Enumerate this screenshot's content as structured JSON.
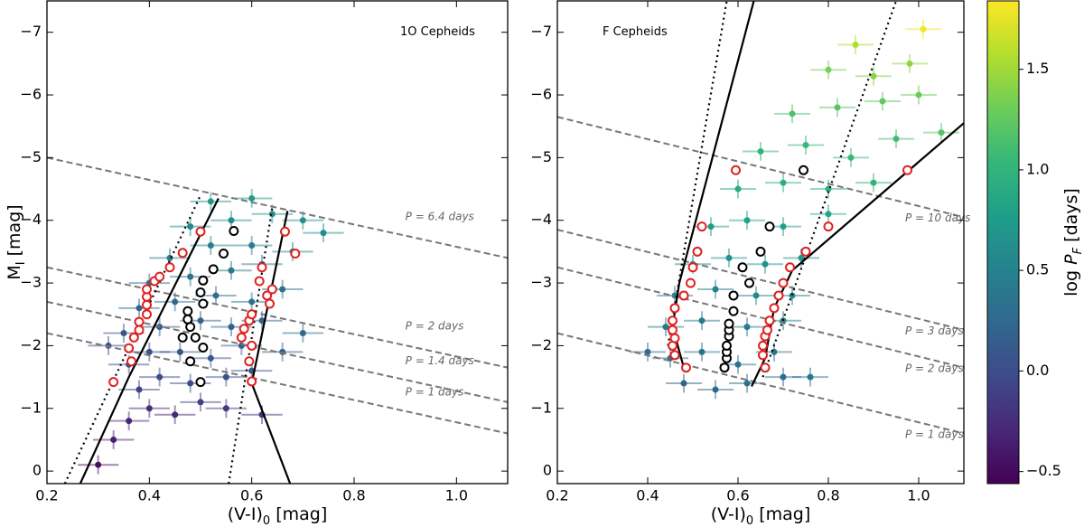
{
  "chart_data": [
    {
      "type": "scatter",
      "annotation": "1O Cepheids",
      "xlabel": [
        "(V-I)",
        "0",
        " [mag]"
      ],
      "ylabel": [
        "M",
        "I",
        " [mag]"
      ],
      "xlim": [
        0.2,
        1.1
      ],
      "ylim": [
        0.2,
        -7.5
      ],
      "xticks": [
        0.2,
        0.4,
        0.6,
        0.8,
        {
          "value": 1,
          "label": "1.0"
        }
      ],
      "yticks": [
        0,
        {
          "value": -1,
          "label": "−1"
        },
        {
          "value": -2,
          "label": "−2"
        },
        {
          "value": -3,
          "label": "−3"
        },
        {
          "value": -4,
          "label": "−4"
        },
        {
          "value": -5,
          "label": "−5"
        },
        {
          "value": -6,
          "label": "−6"
        },
        {
          "value": -7,
          "label": "−7"
        }
      ],
      "x": [
        0.3,
        0.33,
        0.36,
        0.4,
        0.45,
        0.5,
        0.55,
        0.62,
        0.38,
        0.42,
        0.48,
        0.55,
        0.6,
        0.36,
        0.4,
        0.46,
        0.52,
        0.58,
        0.35,
        0.42,
        0.5,
        0.56,
        0.62,
        0.38,
        0.45,
        0.53,
        0.6,
        0.66,
        0.4,
        0.48,
        0.56,
        0.62,
        0.44,
        0.52,
        0.6,
        0.68,
        0.48,
        0.56,
        0.64,
        0.7,
        0.52,
        0.6,
        0.74,
        0.32,
        0.7,
        0.66
      ],
      "y": [
        -0.1,
        -0.5,
        -0.8,
        -1.0,
        -0.9,
        -1.1,
        -1.0,
        -0.9,
        -1.3,
        -1.5,
        -1.4,
        -1.5,
        -1.6,
        -1.7,
        -1.9,
        -1.9,
        -1.8,
        -2.0,
        -2.2,
        -2.3,
        -2.4,
        -2.3,
        -2.4,
        -2.6,
        -2.7,
        -2.8,
        -2.7,
        -2.9,
        -3.0,
        -3.1,
        -3.2,
        -3.3,
        -3.4,
        -3.6,
        -3.6,
        -3.5,
        -3.9,
        -4.0,
        -4.1,
        -4.0,
        -4.3,
        -4.35,
        -3.8,
        -2.0,
        -2.2,
        -1.9
      ],
      "c": [
        -0.45,
        -0.35,
        -0.3,
        -0.25,
        -0.3,
        -0.1,
        -0.15,
        -0.2,
        -0.1,
        0.0,
        0.0,
        0.05,
        0.05,
        0.0,
        0.05,
        0.1,
        0.1,
        0.15,
        0.1,
        0.15,
        0.2,
        0.2,
        0.2,
        0.2,
        0.25,
        0.3,
        0.3,
        0.35,
        0.3,
        0.35,
        0.4,
        0.4,
        0.4,
        0.5,
        0.5,
        0.5,
        0.55,
        0.6,
        0.65,
        0.65,
        0.7,
        0.75,
        0.6,
        0.05,
        0.25,
        0.15
      ],
      "xerr": 0.04,
      "yerr": 0.15,
      "period_lines": [
        {
          "label": "P = 6.4 days",
          "x": [
            0.2,
            1.1
          ],
          "y": [
            -5.0,
            -3.4
          ]
        },
        {
          "label": "P = 2 days",
          "x": [
            0.2,
            1.1
          ],
          "y": [
            -3.25,
            -1.65
          ]
        },
        {
          "label": "P = 1.4 days",
          "x": [
            0.2,
            1.1
          ],
          "y": [
            -2.7,
            -1.1
          ]
        },
        {
          "label": "P = 1 days",
          "x": [
            0.2,
            1.1
          ],
          "y": [
            -2.2,
            -0.6
          ]
        }
      ],
      "edges": [
        {
          "style": "solid",
          "x": [
            0.265,
            0.36,
            0.535
          ],
          "y": [
            0.2,
            -1.5,
            -4.35
          ]
        },
        {
          "style": "dotted",
          "x": [
            0.235,
            0.5
          ],
          "y": [
            0.2,
            -4.4
          ]
        },
        {
          "style": "solid",
          "x": [
            0.675,
            0.6,
            0.67
          ],
          "y": [
            0.2,
            -1.4,
            -4.15
          ]
        },
        {
          "style": "dotted",
          "x": [
            0.555,
            0.64
          ],
          "y": [
            0.2,
            -4.2
          ]
        }
      ],
      "ridges": [
        {
          "color": "#e02020",
          "x": [
            0.33,
            0.365,
            0.36,
            0.37,
            0.38,
            0.38,
            0.395,
            0.395,
            0.395,
            0.395,
            0.41,
            0.42,
            0.44,
            0.465,
            0.5
          ],
          "y": [
            -1.42,
            -1.75,
            -1.96,
            -2.13,
            -2.25,
            -2.38,
            -2.5,
            -2.65,
            -2.78,
            -2.9,
            -3.03,
            -3.1,
            -3.25,
            -3.48,
            -3.82
          ]
        },
        {
          "color": "#e02020",
          "x": [
            0.6,
            0.595,
            0.6,
            0.58,
            0.585,
            0.595,
            0.6,
            0.635,
            0.63,
            0.64,
            0.615,
            0.62,
            0.685,
            0.665
          ],
          "y": [
            -1.43,
            -1.75,
            -2.0,
            -2.13,
            -2.27,
            -2.4,
            -2.5,
            -2.67,
            -2.8,
            -2.9,
            -3.03,
            -3.25,
            -3.47,
            -3.82
          ]
        },
        {
          "color": "#000000",
          "x": [
            0.5,
            0.48,
            0.505,
            0.49,
            0.465,
            0.48,
            0.475,
            0.475,
            0.505,
            0.5,
            0.505,
            0.525,
            0.545,
            0.565
          ],
          "y": [
            -1.42,
            -1.75,
            -1.97,
            -2.13,
            -2.13,
            -2.3,
            -2.42,
            -2.55,
            -2.67,
            -2.85,
            -3.04,
            -3.22,
            -3.47,
            -3.83
          ]
        }
      ]
    },
    {
      "type": "scatter",
      "annotation": "F Cepheids",
      "xlabel": [
        "(V-I)",
        "0",
        " [mag]"
      ],
      "xlim": [
        0.2,
        1.1
      ],
      "ylim": [
        0.2,
        -7.5
      ],
      "xticks": [
        0.2,
        0.4,
        0.6,
        0.8,
        {
          "value": 1,
          "label": "1.0"
        }
      ],
      "yticks": [
        0,
        {
          "value": -1,
          "label": "−1"
        },
        {
          "value": -2,
          "label": "−2"
        },
        {
          "value": -3,
          "label": "−3"
        },
        {
          "value": -4,
          "label": "−4"
        },
        {
          "value": -5,
          "label": "−5"
        },
        {
          "value": -6,
          "label": "−6"
        },
        {
          "value": -7,
          "label": "−7"
        }
      ],
      "x": [
        0.48,
        0.55,
        0.62,
        0.7,
        0.45,
        0.52,
        0.6,
        0.68,
        0.76,
        0.44,
        0.52,
        0.62,
        0.7,
        0.46,
        0.55,
        0.64,
        0.72,
        0.5,
        0.58,
        0.66,
        0.74,
        0.54,
        0.62,
        0.7,
        0.8,
        0.6,
        0.7,
        0.8,
        0.9,
        0.65,
        0.75,
        0.85,
        0.95,
        0.72,
        0.82,
        0.92,
        1.0,
        0.8,
        0.9,
        0.98,
        0.86,
        1.01,
        0.4,
        1.05
      ],
      "y": [
        -1.4,
        -1.3,
        -1.4,
        -1.5,
        -1.8,
        -1.9,
        -1.7,
        -1.9,
        -1.5,
        -2.3,
        -2.4,
        -2.3,
        -2.4,
        -2.8,
        -2.9,
        -2.8,
        -2.8,
        -3.3,
        -3.4,
        -3.3,
        -3.4,
        -3.9,
        -4.0,
        -3.9,
        -4.1,
        -4.5,
        -4.6,
        -4.5,
        -4.6,
        -5.1,
        -5.2,
        -5.0,
        -5.3,
        -5.7,
        -5.8,
        -5.9,
        -6.0,
        -6.4,
        -6.3,
        -6.5,
        -6.8,
        -7.05,
        -1.9,
        -5.4
      ],
      "c": [
        0.2,
        0.25,
        0.3,
        0.3,
        0.3,
        0.35,
        0.35,
        0.35,
        0.35,
        0.4,
        0.4,
        0.45,
        0.45,
        0.5,
        0.5,
        0.55,
        0.55,
        0.6,
        0.65,
        0.65,
        0.7,
        0.75,
        0.8,
        0.8,
        0.85,
        0.9,
        0.95,
        0.95,
        1.0,
        1.0,
        1.05,
        1.05,
        1.1,
        1.15,
        1.2,
        1.25,
        1.3,
        1.35,
        1.4,
        1.45,
        1.55,
        1.8,
        0.3,
        1.2
      ],
      "xerr": 0.04,
      "yerr": 0.15,
      "period_lines": [
        {
          "label": "P = 10 days",
          "x": [
            0.2,
            1.1
          ],
          "y": [
            -5.65,
            -4.05
          ]
        },
        {
          "label": "P = 3 days",
          "x": [
            0.2,
            1.1
          ],
          "y": [
            -3.85,
            -2.25
          ]
        },
        {
          "label": "P = 2 days",
          "x": [
            0.2,
            1.1
          ],
          "y": [
            -3.25,
            -1.65
          ]
        },
        {
          "label": "P = 1 days",
          "x": [
            0.2,
            1.1
          ],
          "y": [
            -2.2,
            -0.6
          ]
        }
      ],
      "edges": [
        {
          "style": "solid",
          "x": [
            0.48,
            0.455,
            0.47,
            0.635
          ],
          "y": [
            -1.65,
            -2.3,
            -3.0,
            -7.5
          ]
        },
        {
          "style": "dotted",
          "x": [
            0.445,
            0.575
          ],
          "y": [
            -2.0,
            -7.5
          ]
        },
        {
          "style": "solid",
          "x": [
            0.63,
            0.66,
            0.68,
            0.72,
            1.1
          ],
          "y": [
            -1.35,
            -1.8,
            -2.6,
            -3.2,
            -5.55
          ]
        },
        {
          "style": "dotted",
          "x": [
            0.655,
            0.95
          ],
          "y": [
            -1.5,
            -7.5
          ]
        }
      ],
      "ridges": [
        {
          "color": "#e02020",
          "x": [
            0.485,
            0.46,
            0.455,
            0.46,
            0.455,
            0.455,
            0.46,
            0.48,
            0.495,
            0.5,
            0.51,
            0.52,
            0.595
          ],
          "y": [
            -1.65,
            -1.85,
            -2.0,
            -2.12,
            -2.25,
            -2.4,
            -2.6,
            -2.8,
            -3.0,
            -3.25,
            -3.5,
            -3.9,
            -4.8
          ]
        },
        {
          "color": "#e02020",
          "x": [
            0.66,
            0.655,
            0.655,
            0.66,
            0.665,
            0.67,
            0.68,
            0.69,
            0.7,
            0.715,
            0.75,
            0.8,
            0.975
          ],
          "y": [
            -1.65,
            -1.85,
            -2.0,
            -2.15,
            -2.25,
            -2.4,
            -2.6,
            -2.8,
            -3.0,
            -3.25,
            -3.5,
            -3.9,
            -4.8
          ]
        },
        {
          "color": "#000000",
          "x": [
            0.57,
            0.575,
            0.575,
            0.575,
            0.58,
            0.58,
            0.58,
            0.59,
            0.59,
            0.625,
            0.61,
            0.65,
            0.67,
            0.745
          ],
          "y": [
            -1.65,
            -1.8,
            -1.9,
            -2.0,
            -2.15,
            -2.25,
            -2.35,
            -2.55,
            -2.8,
            -3.0,
            -3.25,
            -3.5,
            -3.9,
            -4.8
          ]
        }
      ]
    },
    {
      "type": "colorbar",
      "colormap": "viridis",
      "label": [
        "log ",
        "P",
        "F",
        " [days]"
      ],
      "clim": [
        -0.56,
        1.84
      ],
      "ticks": [
        {
          "value": -0.5,
          "label": "−0.5"
        },
        {
          "value": 0,
          "label": "0.0"
        },
        0.5,
        {
          "value": 1,
          "label": "1.0"
        },
        1.5
      ]
    }
  ]
}
